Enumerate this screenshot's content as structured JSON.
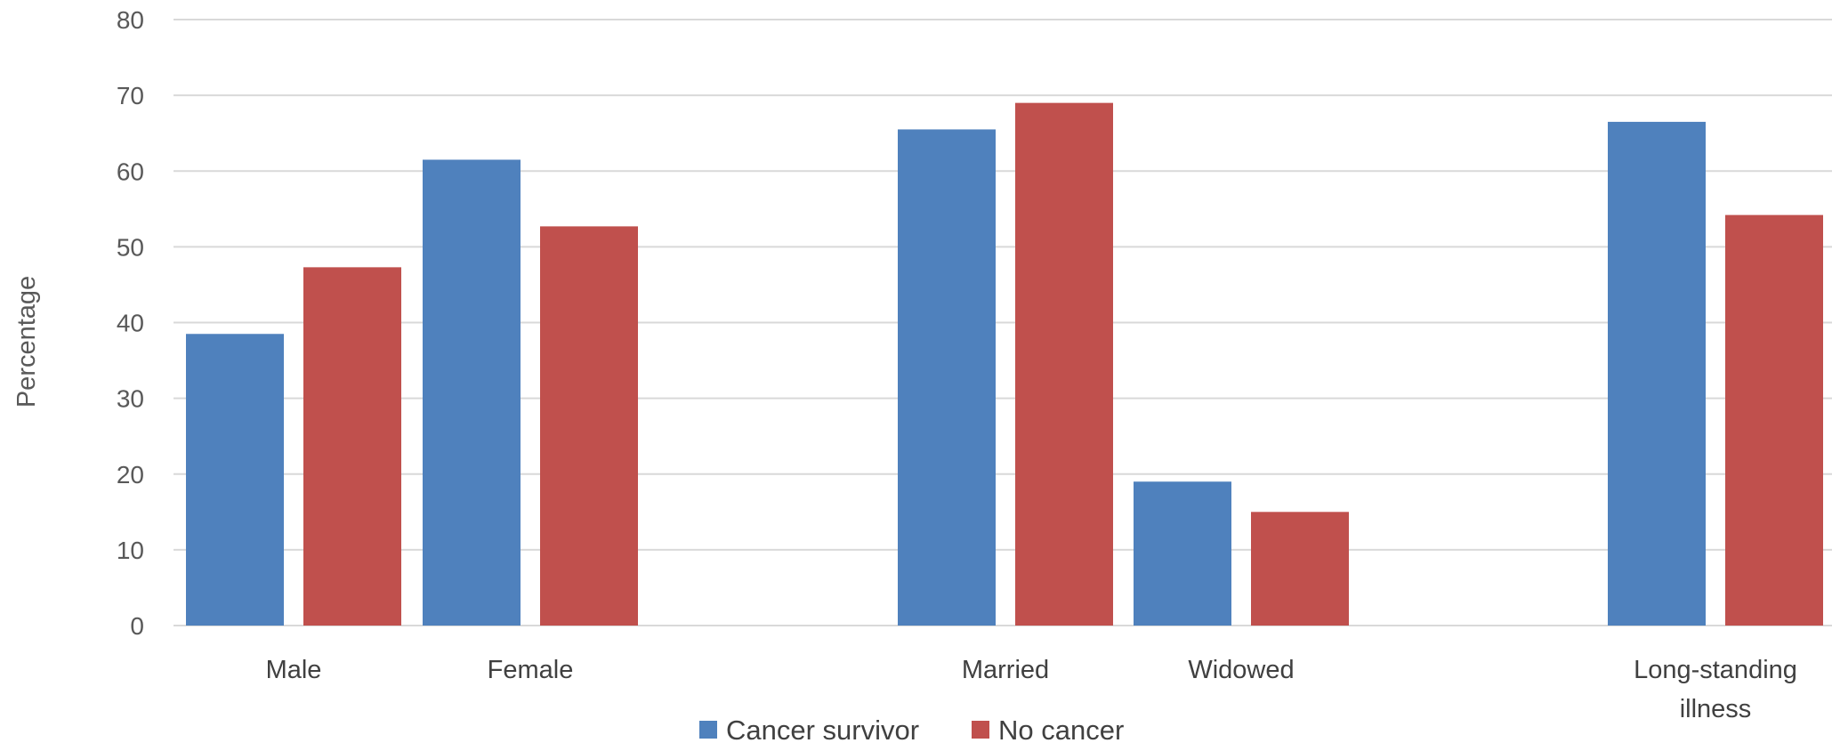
{
  "chart_data": {
    "type": "bar",
    "title": "",
    "xlabel": "",
    "ylabel": "Percentage",
    "ylim": [
      0,
      80
    ],
    "yticks": [
      0,
      10,
      20,
      30,
      40,
      50,
      60,
      70,
      80
    ],
    "grid": true,
    "legend_position": "bottom",
    "categories": [
      "Male",
      "Female",
      "Married",
      "Widowed",
      "Long-standing illness"
    ],
    "category_lines": [
      [
        "Male"
      ],
      [
        "Female"
      ],
      [
        "Married"
      ],
      [
        "Widowed"
      ],
      [
        "Long-standing",
        "illness"
      ]
    ],
    "series": [
      {
        "name": "Cancer survivor",
        "color": "#4f81bd",
        "values": [
          38.5,
          61.5,
          65.5,
          19.0,
          66.5
        ]
      },
      {
        "name": "No cancer",
        "color": "#c0504d",
        "values": [
          47.3,
          52.7,
          69.0,
          15.0,
          54.2
        ]
      }
    ]
  }
}
